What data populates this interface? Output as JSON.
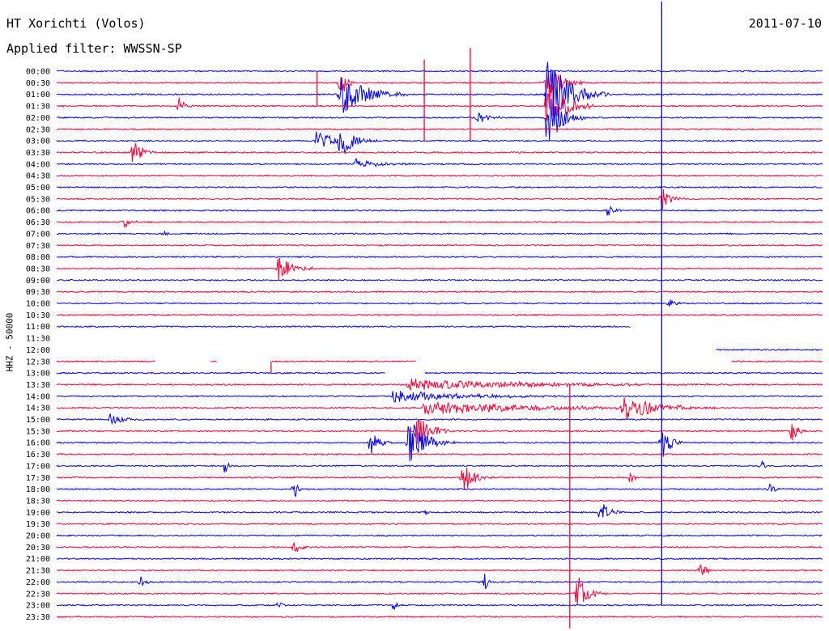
{
  "header": {
    "station": "HT Xorichti (Volos)",
    "filter": "Applied filter: WWSSN-SP",
    "date": "2011-07-10"
  },
  "chart_data": {
    "type": "line",
    "ylabel": "HHZ - 50000",
    "colors": {
      "even_hour": "#0000ff",
      "half_hour": "#ff0033"
    },
    "rows": [
      "00:00",
      "00:30",
      "01:00",
      "01:30",
      "02:00",
      "02:30",
      "03:00",
      "03:30",
      "04:00",
      "04:30",
      "05:00",
      "05:30",
      "06:00",
      "06:30",
      "07:00",
      "07:30",
      "08:00",
      "08:30",
      "09:00",
      "09:30",
      "10:00",
      "10:30",
      "11:00",
      "11:30",
      "12:00",
      "12:30",
      "13:00",
      "13:30",
      "14:00",
      "14:30",
      "15:00",
      "15:30",
      "16:00",
      "16:30",
      "17:00",
      "17:30",
      "18:00",
      "18:30",
      "19:00",
      "19:30",
      "20:00",
      "20:30",
      "21:00",
      "21:30",
      "22:00",
      "22:30",
      "23:00",
      "23:30"
    ],
    "row_minutes": 30,
    "gaps": [
      {
        "row": "11:00",
        "from": 0.75,
        "to": 1.0
      },
      {
        "row": "11:30",
        "from": 0.0,
        "to": 1.0
      },
      {
        "row": "12:00",
        "from": 0.0,
        "to": 0.86
      },
      {
        "row": "12:30",
        "from": 0.13,
        "to": 0.2
      },
      {
        "row": "12:30",
        "from": 0.21,
        "to": 0.28
      },
      {
        "row": "12:30",
        "from": 0.47,
        "to": 0.88
      },
      {
        "row": "13:00",
        "from": 0.43,
        "to": 0.48
      }
    ],
    "events": [
      {
        "row": "00:30",
        "pos": 0.37,
        "amp": 3,
        "dur": 0.02
      },
      {
        "row": "01:00",
        "pos": 0.37,
        "amp": 3.5,
        "dur": 0.09
      },
      {
        "row": "01:30",
        "pos": 0.16,
        "amp": 1.5,
        "dur": 0.02
      },
      {
        "row": "03:00",
        "pos": 0.34,
        "amp": 2,
        "dur": 0.05
      },
      {
        "row": "03:00",
        "pos": 0.37,
        "amp": 3,
        "dur": 0.05
      },
      {
        "row": "03:30",
        "pos": 0.1,
        "amp": 2.5,
        "dur": 0.03
      },
      {
        "row": "04:00",
        "pos": 0.39,
        "amp": 1,
        "dur": 0.07
      },
      {
        "row": "00:30",
        "pos": 0.64,
        "amp": 4,
        "dur": 0.05
      },
      {
        "row": "01:00",
        "pos": 0.64,
        "amp": 6,
        "dur": 0.08
      },
      {
        "row": "01:30",
        "pos": 0.64,
        "amp": 5,
        "dur": 0.06
      },
      {
        "row": "02:00",
        "pos": 0.64,
        "amp": 5,
        "dur": 0.05
      },
      {
        "row": "02:00",
        "pos": 0.55,
        "amp": 1,
        "dur": 0.04
      },
      {
        "row": "05:30",
        "pos": 0.79,
        "amp": 2,
        "dur": 0.03
      },
      {
        "row": "06:00",
        "pos": 0.72,
        "amp": 1,
        "dur": 0.02
      },
      {
        "row": "06:30",
        "pos": 0.09,
        "amp": 1,
        "dur": 0.02
      },
      {
        "row": "07:00",
        "pos": 0.14,
        "amp": 1,
        "dur": 0.01
      },
      {
        "row": "08:30",
        "pos": 0.29,
        "amp": 2.5,
        "dur": 0.05
      },
      {
        "row": "10:00",
        "pos": 0.8,
        "amp": 1,
        "dur": 0.02
      },
      {
        "row": "13:30",
        "pos": 0.46,
        "amp": 1,
        "dur": 0.42
      },
      {
        "row": "14:00",
        "pos": 0.44,
        "amp": 1,
        "dur": 0.26
      },
      {
        "row": "14:30",
        "pos": 0.48,
        "amp": 1.2,
        "dur": 0.38
      },
      {
        "row": "14:30",
        "pos": 0.74,
        "amp": 2,
        "dur": 0.12
      },
      {
        "row": "15:00",
        "pos": 0.07,
        "amp": 1,
        "dur": 0.05
      },
      {
        "row": "15:30",
        "pos": 0.47,
        "amp": 3,
        "dur": 0.05
      },
      {
        "row": "15:30",
        "pos": 0.96,
        "amp": 2,
        "dur": 0.02
      },
      {
        "row": "16:00",
        "pos": 0.41,
        "amp": 2,
        "dur": 0.03
      },
      {
        "row": "16:00",
        "pos": 0.46,
        "amp": 4,
        "dur": 0.06
      },
      {
        "row": "16:00",
        "pos": 0.79,
        "amp": 3,
        "dur": 0.03
      },
      {
        "row": "17:00",
        "pos": 0.22,
        "amp": 1.5,
        "dur": 0.01
      },
      {
        "row": "17:00",
        "pos": 0.92,
        "amp": 1.5,
        "dur": 0.01
      },
      {
        "row": "17:30",
        "pos": 0.53,
        "amp": 3,
        "dur": 0.04
      },
      {
        "row": "17:30",
        "pos": 0.75,
        "amp": 2,
        "dur": 0.01
      },
      {
        "row": "18:00",
        "pos": 0.31,
        "amp": 2.5,
        "dur": 0.01
      },
      {
        "row": "18:00",
        "pos": 0.93,
        "amp": 1,
        "dur": 0.02
      },
      {
        "row": "19:00",
        "pos": 0.71,
        "amp": 2,
        "dur": 0.03
      },
      {
        "row": "19:00",
        "pos": 0.48,
        "amp": 1,
        "dur": 0.01
      },
      {
        "row": "20:30",
        "pos": 0.31,
        "amp": 1,
        "dur": 0.03
      },
      {
        "row": "21:30",
        "pos": 0.84,
        "amp": 1.5,
        "dur": 0.02
      },
      {
        "row": "22:00",
        "pos": 0.11,
        "amp": 1,
        "dur": 0.02
      },
      {
        "row": "22:00",
        "pos": 0.56,
        "amp": 2,
        "dur": 0.01
      },
      {
        "row": "22:30",
        "pos": 0.68,
        "amp": 3,
        "dur": 0.04
      },
      {
        "row": "23:00",
        "pos": 0.29,
        "amp": 1.2,
        "dur": 0.01
      },
      {
        "row": "23:00",
        "pos": 0.44,
        "amp": 1.2,
        "dur": 0.01
      }
    ],
    "spikes": [
      {
        "row": "00:30",
        "pos": 0.34,
        "up": 1,
        "down": 2
      },
      {
        "row": "00:30",
        "pos": 0.48,
        "up": 2,
        "down": 5
      },
      {
        "row": "00:30",
        "pos": 0.54,
        "up": 3,
        "down": 5
      },
      {
        "row": "06:00",
        "pos": 0.79,
        "up": 1,
        "down": 34
      },
      {
        "row": "00:00",
        "pos": 0.79,
        "up": 6,
        "down": 12
      },
      {
        "row": "12:30",
        "pos": 0.28,
        "up": 0,
        "down": 1
      },
      {
        "row": "13:30",
        "pos": 0.67,
        "up": 0,
        "down": 21
      }
    ]
  }
}
